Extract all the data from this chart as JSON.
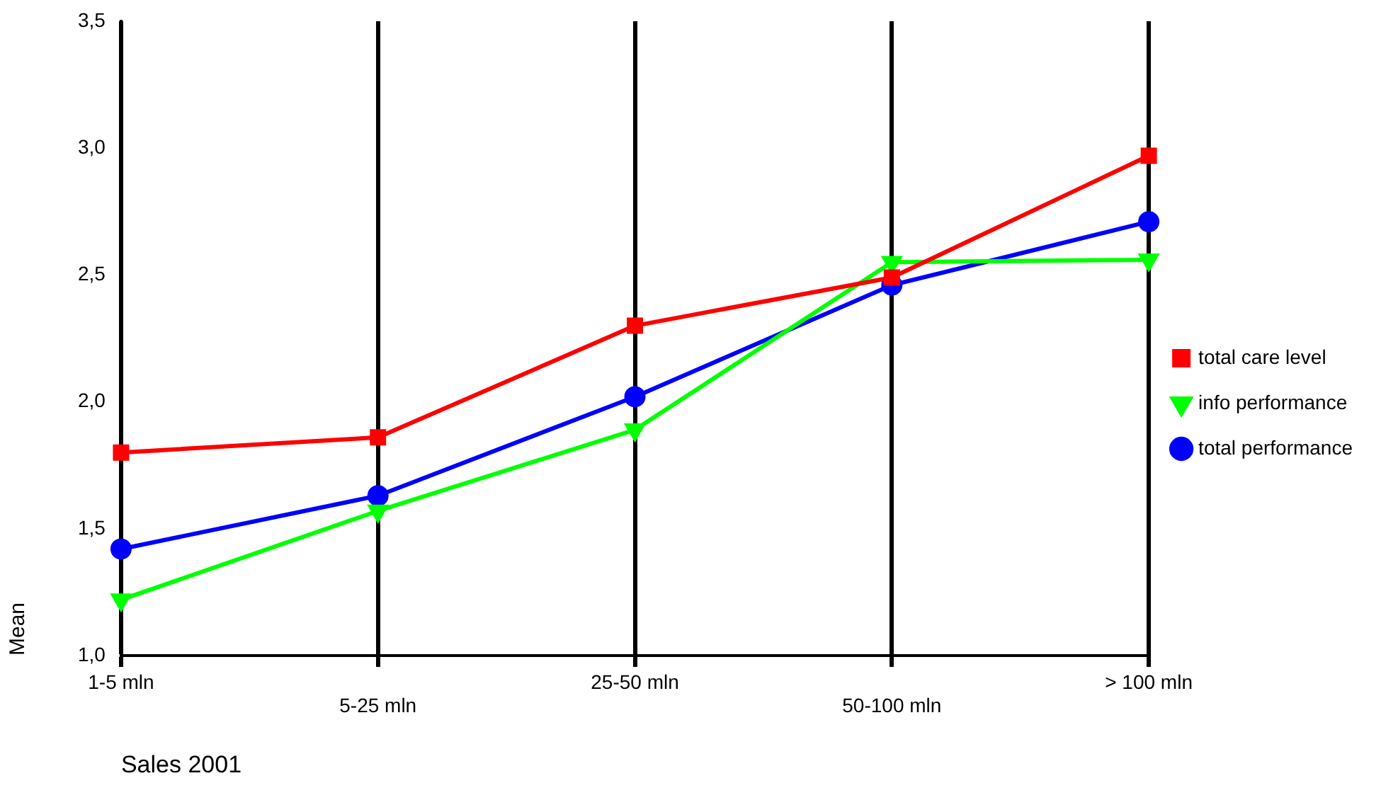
{
  "chart_data": {
    "type": "line",
    "xlabel": "Sales 2001",
    "ylabel": "Mean",
    "categories": [
      "1-5 mln",
      "5-25 mln",
      "25-50 mln",
      "50-100 mln",
      "> 100 mln"
    ],
    "ylim": [
      1.0,
      3.5
    ],
    "yticks": [
      {
        "value": 1.0,
        "label": "1,0"
      },
      {
        "value": 1.5,
        "label": "1,5"
      },
      {
        "value": 2.0,
        "label": "2,0"
      },
      {
        "value": 2.5,
        "label": "2,5"
      },
      {
        "value": 3.0,
        "label": "3,0"
      },
      {
        "value": 3.5,
        "label": "3,5"
      }
    ],
    "grid": "x",
    "legend": "right",
    "series": [
      {
        "name": "total care level",
        "color": "#ff0000",
        "marker": "square",
        "values": [
          1.8,
          1.86,
          2.3,
          2.49,
          2.97
        ]
      },
      {
        "name": "info performance",
        "color": "#00ff00",
        "marker": "triangle",
        "values": [
          1.22,
          1.57,
          1.89,
          2.55,
          2.56
        ]
      },
      {
        "name": "total performance",
        "color": "#0000ff",
        "marker": "circle",
        "values": [
          1.42,
          1.63,
          2.02,
          2.46,
          2.71
        ]
      }
    ]
  }
}
